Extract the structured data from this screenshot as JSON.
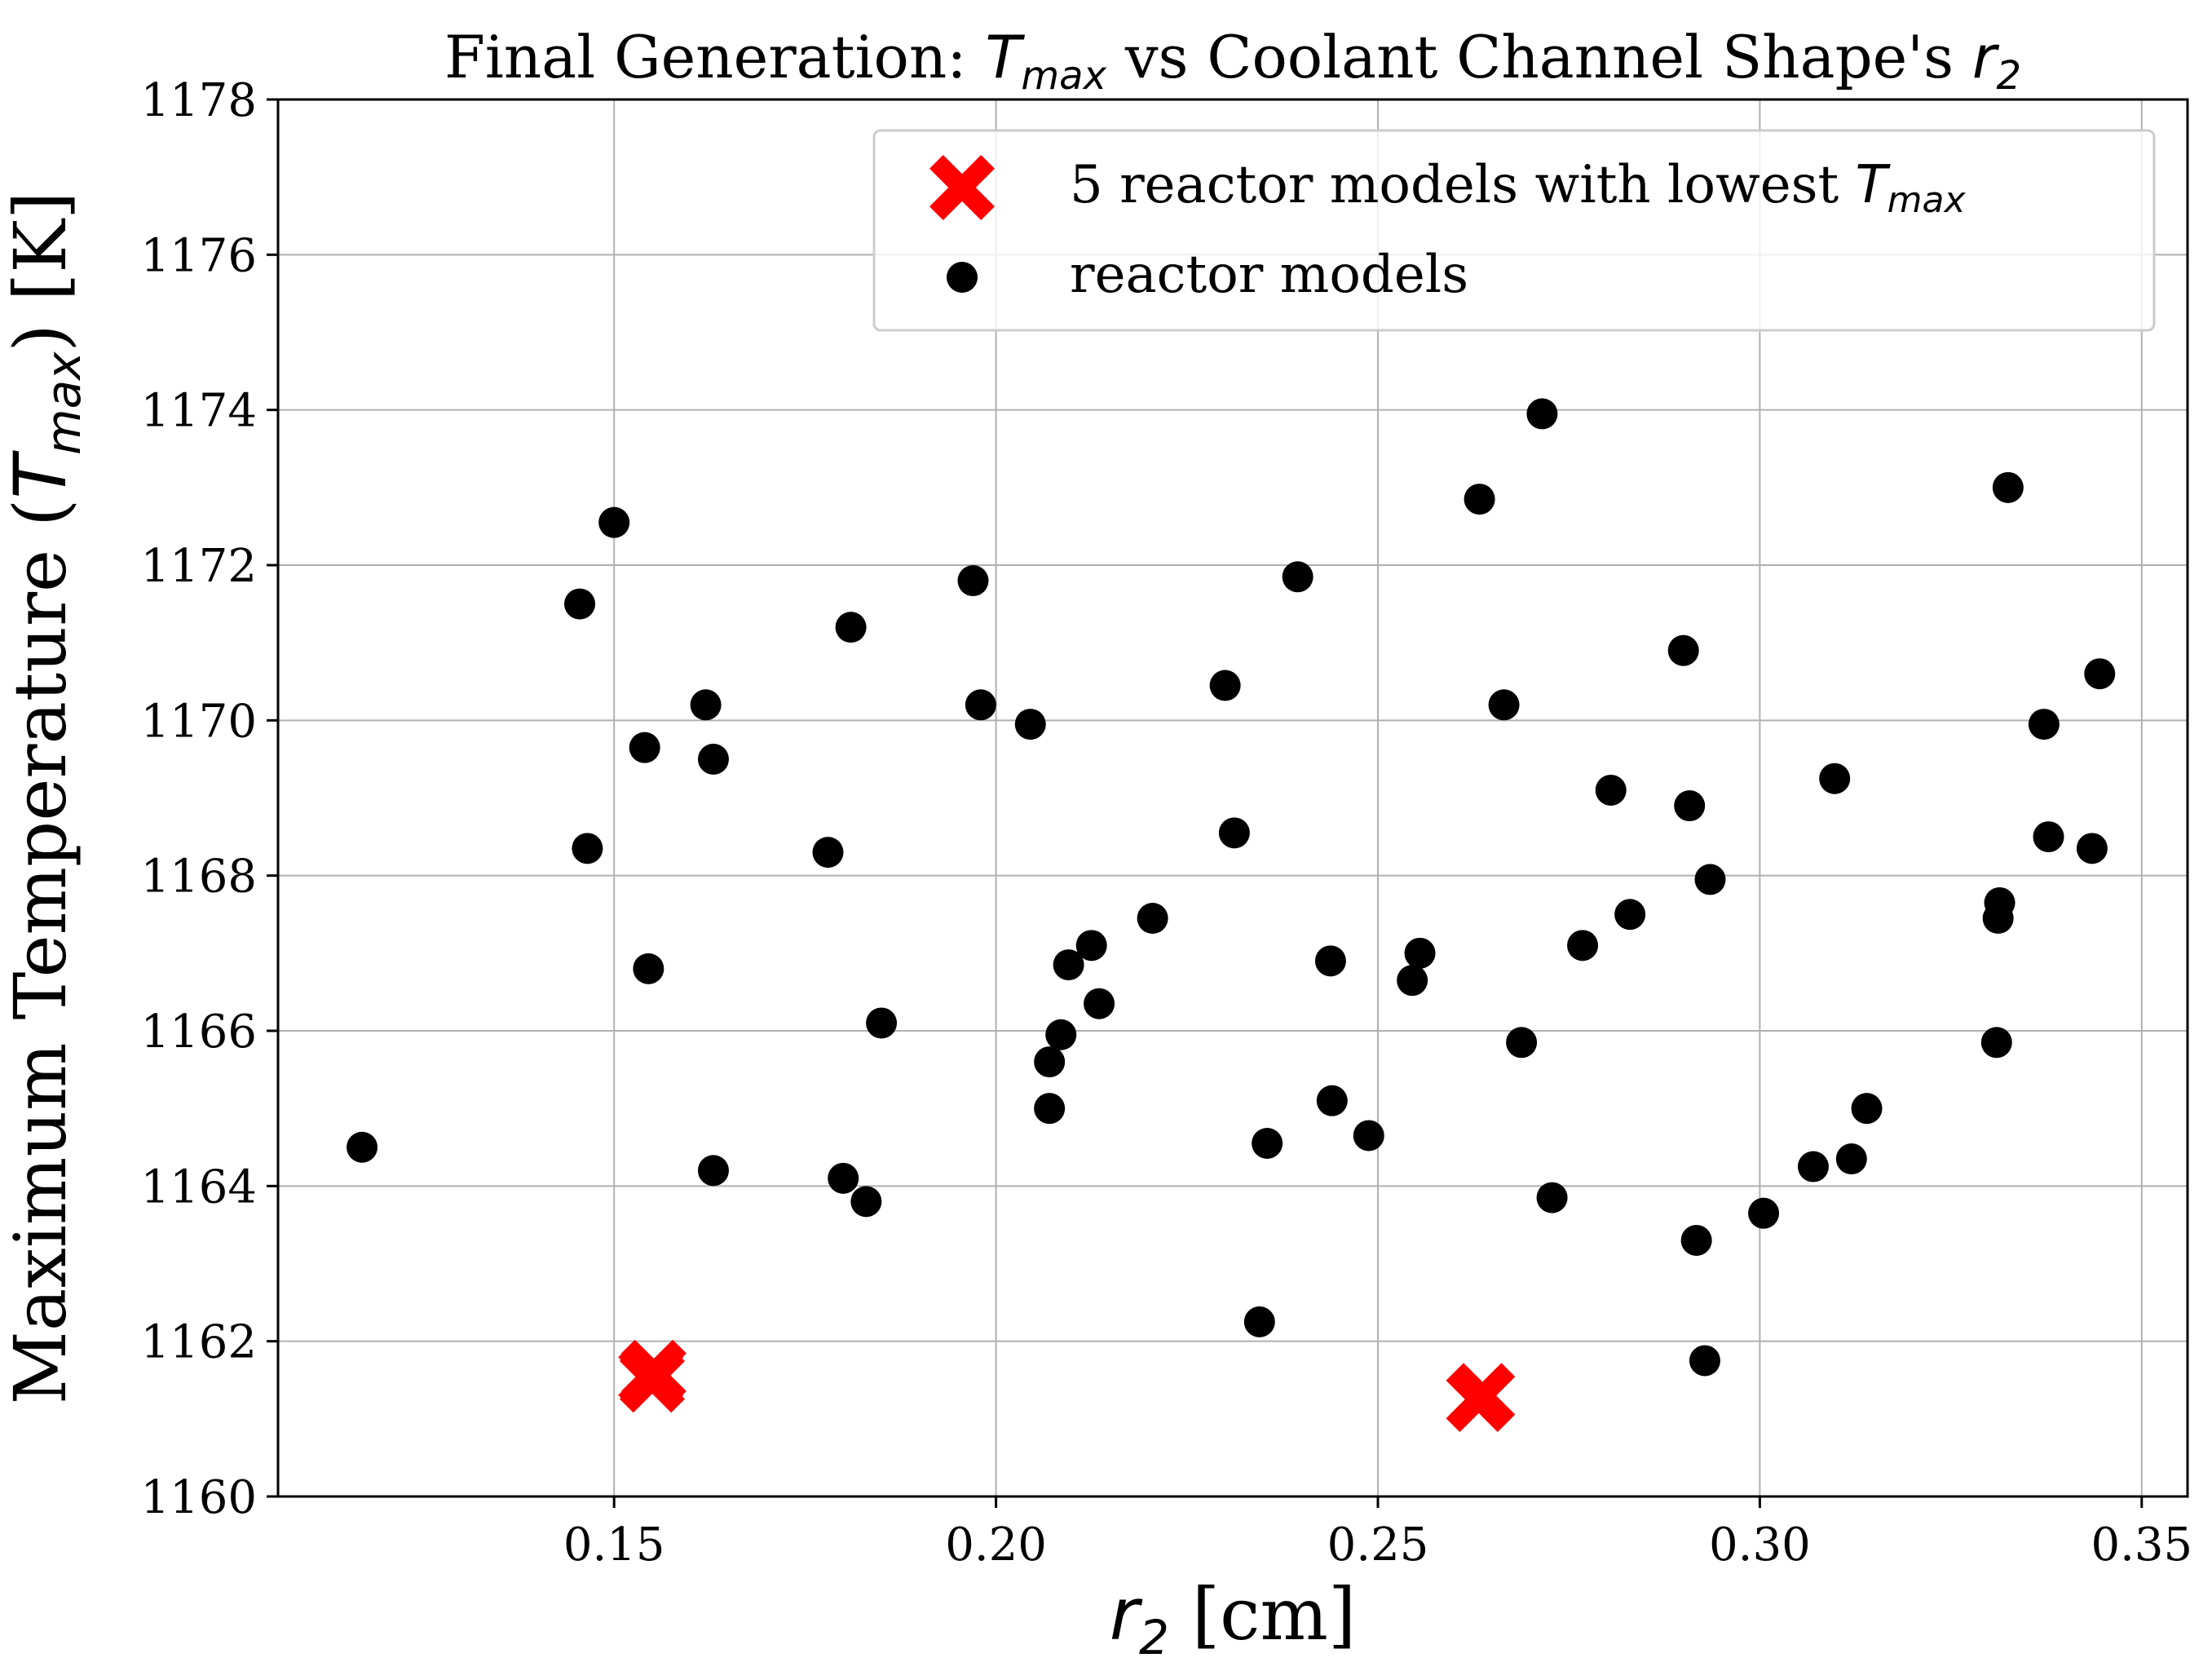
{
  "chart_data": {
    "type": "scatter",
    "title": {
      "prefix": "Final Generation: ",
      "var": "T",
      "var_sub": "max",
      "middle": " vs Coolant Channel Shape's ",
      "var2": "r",
      "var2_sub": "2"
    },
    "xlabel": {
      "var": "r",
      "var_sub": "2",
      "unit": " [cm]"
    },
    "ylabel": {
      "prefix": "Maximum Temperature (",
      "var": "T",
      "var_sub": "max",
      "suffix": ") [K]"
    },
    "xlim": [
      0.106,
      0.356
    ],
    "ylim": [
      1160,
      1178
    ],
    "x_ticks": [
      0.15,
      0.2,
      0.25,
      0.3,
      0.35
    ],
    "x_tick_labels": [
      "0.15",
      "0.20",
      "0.25",
      "0.30",
      "0.35"
    ],
    "y_ticks": [
      1160,
      1162,
      1164,
      1166,
      1168,
      1170,
      1172,
      1174,
      1176,
      1178
    ],
    "y_tick_labels": [
      "1160",
      "1162",
      "1164",
      "1166",
      "1168",
      "1170",
      "1172",
      "1174",
      "1176",
      "1178"
    ],
    "grid": true,
    "legend_placement": "top-right",
    "series": [
      {
        "name": "5 reactor models with lowest ",
        "name_var": "T",
        "name_var_sub": "max",
        "marker": "X",
        "color": "#ff0000",
        "x": [
          0.1548,
          0.1552,
          0.155,
          0.2632,
          0.2637
        ],
        "y": [
          1161.55,
          1161.6,
          1161.5,
          1161.25,
          1161.3
        ]
      },
      {
        "name": "reactor models",
        "marker": "circle",
        "color": "#000000",
        "x": [
          0.117,
          0.1455,
          0.1465,
          0.15,
          0.154,
          0.1545,
          0.162,
          0.163,
          0.163,
          0.178,
          0.18,
          0.181,
          0.183,
          0.185,
          0.197,
          0.198,
          0.2045,
          0.207,
          0.207,
          0.2085,
          0.2095,
          0.2125,
          0.2135,
          0.2205,
          0.23,
          0.2312,
          0.2345,
          0.2355,
          0.2395,
          0.2438,
          0.244,
          0.2488,
          0.2545,
          0.2555,
          0.2633,
          0.2665,
          0.2688,
          0.2715,
          0.2728,
          0.2768,
          0.2805,
          0.283,
          0.29,
          0.2908,
          0.2917,
          0.2928,
          0.2935,
          0.3005,
          0.307,
          0.3098,
          0.312,
          0.314,
          0.331,
          0.3312,
          0.3314,
          0.3325,
          0.3372,
          0.3378,
          0.3435,
          0.3445
        ],
        "y": [
          1164.5,
          1171.5,
          1168.35,
          1172.55,
          1169.65,
          1166.8,
          1170.2,
          1169.5,
          1164.2,
          1168.3,
          1164.1,
          1171.2,
          1163.8,
          1166.1,
          1171.8,
          1170.2,
          1169.95,
          1165.6,
          1165.0,
          1165.95,
          1166.85,
          1167.1,
          1166.35,
          1167.45,
          1170.45,
          1168.55,
          1162.25,
          1164.55,
          1171.85,
          1166.9,
          1165.1,
          1164.65,
          1166.65,
          1167.0,
          1172.85,
          1170.2,
          1165.85,
          1173.95,
          1163.85,
          1167.1,
          1169.1,
          1167.5,
          1170.9,
          1168.9,
          1163.3,
          1161.75,
          1167.95,
          1163.65,
          1164.25,
          1169.25,
          1164.35,
          1165.0,
          1165.85,
          1167.45,
          1167.65,
          1173.0,
          1169.95,
          1168.5,
          1168.35,
          1170.6
        ]
      }
    ]
  }
}
